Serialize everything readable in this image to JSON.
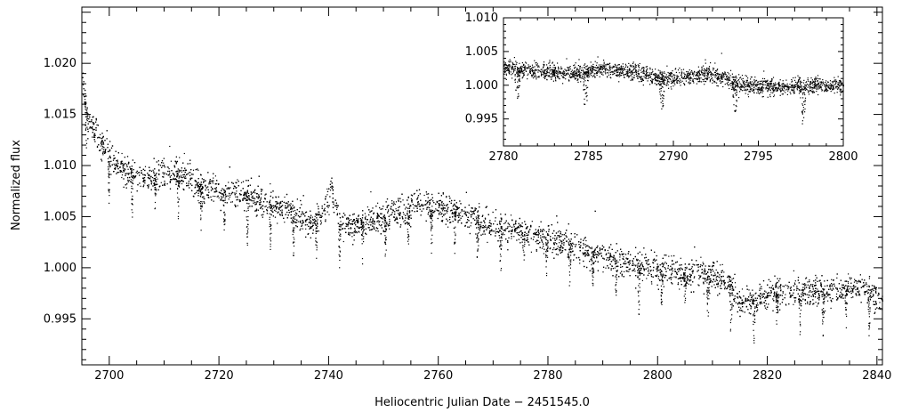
{
  "chart_data": [
    {
      "type": "scatter",
      "name": "main",
      "xlabel": "Heliocentric Julian Date − 2451545.0",
      "ylabel": "Normalized flux",
      "xlim": [
        2695,
        2841
      ],
      "ylim": [
        0.9905,
        1.0255
      ],
      "xticks": [
        2700,
        2720,
        2740,
        2760,
        2780,
        2800,
        2820,
        2840
      ],
      "xtick_labels": [
        "2700",
        "2720",
        "2740",
        "2760",
        "2780",
        "2800",
        "2820",
        "2840"
      ],
      "yticks": [
        0.995,
        1.0,
        1.005,
        1.01,
        1.015,
        1.02
      ],
      "ytick_labels": [
        "0.995",
        "1.000",
        "1.005",
        "1.010",
        "1.015",
        "1.020"
      ],
      "grid": false,
      "marker_color": "#000000",
      "trend_knots": {
        "x": [
          2695,
          2696,
          2698,
          2700,
          2703,
          2706,
          2710,
          2713,
          2716,
          2720,
          2725,
          2730,
          2734,
          2737,
          2739,
          2740.5,
          2742,
          2744,
          2748,
          2752,
          2756,
          2760,
          2765,
          2770,
          2775,
          2780,
          2785,
          2790,
          2795,
          2800,
          2805,
          2810,
          2813,
          2815,
          2818,
          2822,
          2826,
          2830,
          2835,
          2838,
          2841
        ],
        "y": [
          1.0185,
          1.0145,
          1.0125,
          1.011,
          1.0095,
          1.0088,
          1.0092,
          1.0093,
          1.008,
          1.0075,
          1.0072,
          1.006,
          1.0052,
          1.0042,
          1.0055,
          1.0078,
          1.0045,
          1.0042,
          1.0045,
          1.0052,
          1.0062,
          1.006,
          1.0052,
          1.004,
          1.0035,
          1.0028,
          1.0022,
          1.0012,
          1.0005,
          0.9998,
          0.9995,
          0.9992,
          0.9985,
          0.9965,
          0.9972,
          0.9975,
          0.9978,
          0.9975,
          0.9982,
          0.9978,
          0.9968
        ]
      },
      "eclipse_period": 4.2,
      "eclipse_first": 2695.7,
      "eclipse_depth": 0.0045
    },
    {
      "type": "scatter",
      "name": "inset",
      "xlabel": "",
      "ylabel": "",
      "xlim": [
        2780,
        2800
      ],
      "ylim": [
        0.991,
        1.01
      ],
      "xticks": [
        2780,
        2785,
        2790,
        2795,
        2800
      ],
      "xtick_labels": [
        "2780",
        "2785",
        "2790",
        "2795",
        "2800"
      ],
      "yticks": [
        0.995,
        1.0,
        1.005,
        1.01
      ],
      "ytick_labels": [
        "0.995",
        "1.000",
        "1.005",
        "1.010"
      ],
      "grid": false,
      "marker_color": "#000000",
      "trend_knots": {
        "x": [
          2780,
          2782,
          2784,
          2785,
          2786,
          2788,
          2789.5,
          2791,
          2792,
          2793.3,
          2794,
          2796,
          2798,
          2800
        ],
        "y": [
          1.0025,
          1.0022,
          1.0018,
          1.002,
          1.0025,
          1.0018,
          1.001,
          1.0012,
          1.0018,
          1.001,
          1.0,
          0.9998,
          1.0,
          1.0
        ]
      },
      "eclipse_times": [
        2780.8,
        2784.8,
        2789.3,
        2793.6,
        2797.6
      ],
      "eclipse_depth": 0.0055
    }
  ]
}
